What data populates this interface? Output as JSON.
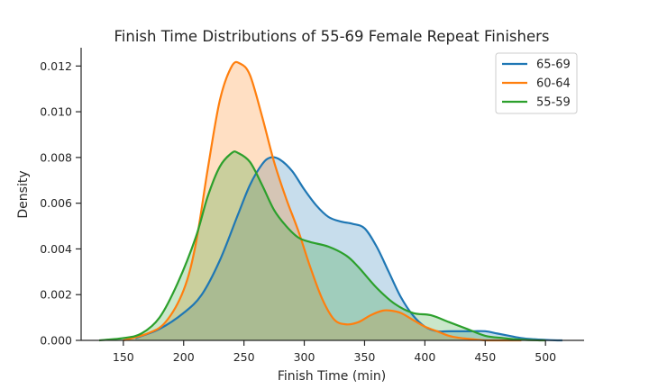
{
  "chart_data": {
    "type": "area",
    "title": "Finish Time Distributions of 55-69 Female Repeat Finishers",
    "xlabel": "Finish Time (min)",
    "ylabel": "Density",
    "xlim": [
      115,
      532
    ],
    "ylim": [
      0,
      0.0128
    ],
    "x_ticks": [
      150,
      200,
      250,
      300,
      350,
      400,
      450,
      500
    ],
    "y_ticks": [
      0.0,
      0.002,
      0.004,
      0.006,
      0.008,
      0.01,
      0.012
    ],
    "x_tick_labels": [
      "150",
      "200",
      "250",
      "300",
      "350",
      "400",
      "450",
      "500"
    ],
    "y_tick_labels": [
      "0.000",
      "0.002",
      "0.004",
      "0.006",
      "0.008",
      "0.010",
      "0.012"
    ],
    "grid": false,
    "legend_position": "top-right",
    "series": [
      {
        "name": "65-69",
        "color": "#1f77b4",
        "x": [
          160,
          180,
          200,
          215,
          230,
          245,
          255,
          265,
          272,
          280,
          290,
          300,
          310,
          320,
          330,
          340,
          350,
          360,
          370,
          380,
          390,
          400,
          410,
          420,
          430,
          440,
          450,
          460,
          470,
          480,
          490,
          500,
          510,
          514
        ],
        "y": [
          0.0001,
          0.0005,
          0.0012,
          0.002,
          0.0035,
          0.0055,
          0.0068,
          0.0077,
          0.008,
          0.0079,
          0.0074,
          0.0066,
          0.0059,
          0.0054,
          0.0052,
          0.0051,
          0.0049,
          0.0041,
          0.003,
          0.0019,
          0.0011,
          0.0006,
          0.0004,
          0.0004,
          0.0004,
          0.0004,
          0.0004,
          0.0003,
          0.0002,
          0.0001,
          5e-05,
          2e-05,
          0.0,
          0.0
        ]
      },
      {
        "name": "60-64",
        "color": "#ff7f0e",
        "x": [
          150,
          170,
          185,
          200,
          210,
          220,
          230,
          240,
          247,
          255,
          265,
          275,
          285,
          295,
          305,
          315,
          325,
          335,
          345,
          355,
          365,
          372,
          380,
          390,
          400,
          410,
          420,
          430,
          440,
          450,
          460,
          470,
          480
        ],
        "y": [
          0.0,
          0.0003,
          0.0008,
          0.0022,
          0.0042,
          0.0075,
          0.0105,
          0.012,
          0.0121,
          0.0116,
          0.0098,
          0.0078,
          0.0062,
          0.0048,
          0.0032,
          0.0018,
          0.0009,
          0.0007,
          0.0008,
          0.0011,
          0.0013,
          0.0013,
          0.0012,
          0.0009,
          0.0006,
          0.0004,
          0.0002,
          0.0001,
          5e-05,
          0.0,
          0.0,
          0.0,
          0.0
        ]
      },
      {
        "name": "55-59",
        "color": "#2ca02c",
        "x": [
          130,
          150,
          165,
          180,
          195,
          210,
          220,
          230,
          240,
          245,
          255,
          265,
          275,
          285,
          295,
          305,
          320,
          335,
          345,
          360,
          375,
          390,
          405,
          420,
          435,
          450,
          465,
          480,
          495,
          500
        ],
        "y": [
          0.0,
          0.0001,
          0.0003,
          0.001,
          0.0025,
          0.0045,
          0.0063,
          0.0076,
          0.0082,
          0.0082,
          0.0078,
          0.0068,
          0.0057,
          0.005,
          0.0045,
          0.0043,
          0.0041,
          0.0037,
          0.0032,
          0.0023,
          0.0016,
          0.0012,
          0.0011,
          0.0008,
          0.0005,
          0.0002,
          0.0001,
          3e-05,
          0.0,
          0.0
        ]
      }
    ]
  }
}
